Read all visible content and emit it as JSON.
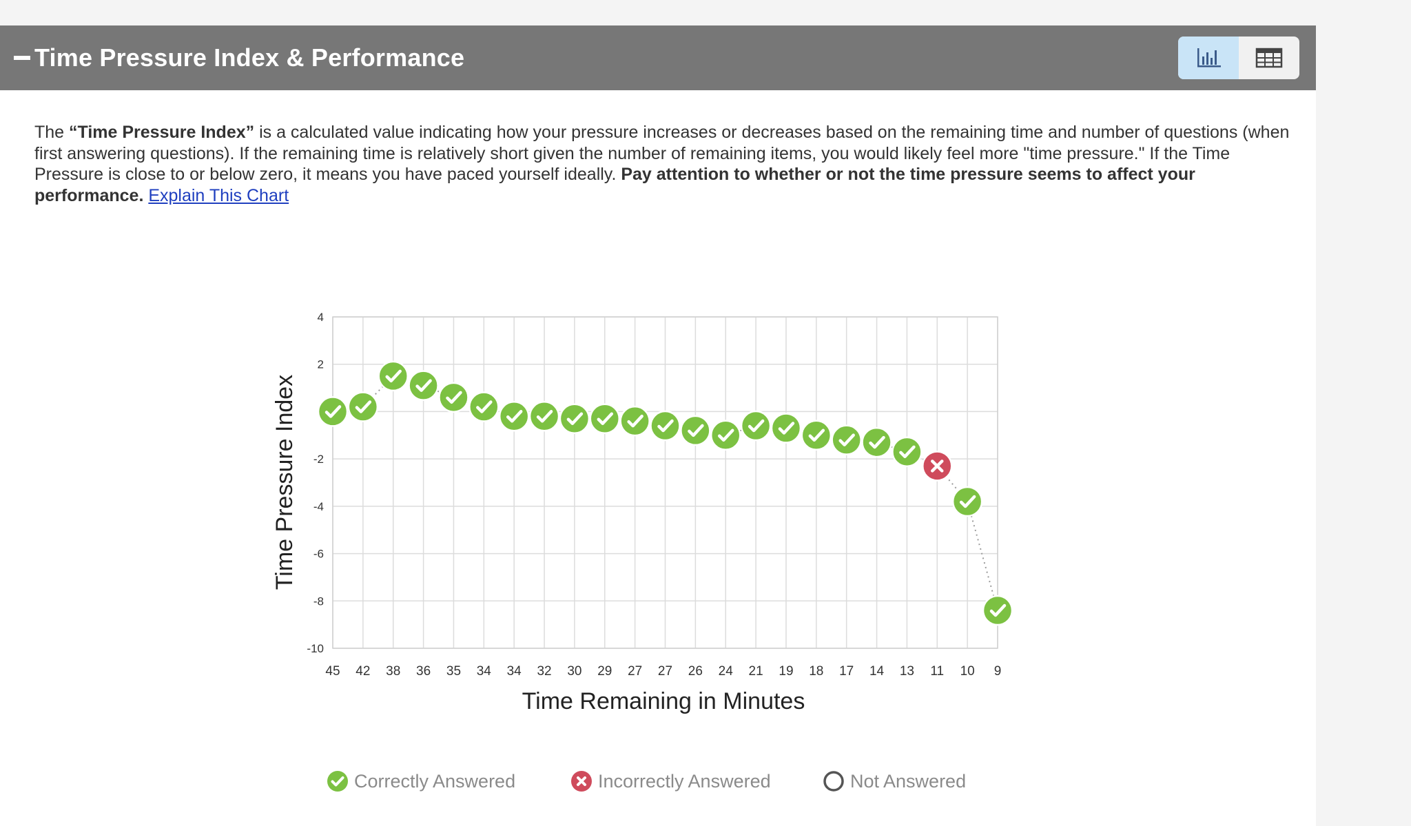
{
  "header": {
    "title": "Time Pressure Index & Performance",
    "chart_view_icon": "bar-chart-icon",
    "table_view_icon": "table-grid-icon"
  },
  "description": {
    "p1": "The ",
    "bold1": "“Time Pressure Index”",
    "p2": " is a calculated value indicating how your pressure increases or decreases based on the remaining time and number of questions (when first answering questions). If the remaining time is relatively short given the number of remaining items, you would likely feel more \"time pressure.\" If the Time Pressure is close to or below zero, it means you have paced yourself ideally. ",
    "bold2": "Pay attention to whether or not the time pressure seems to affect your performance.",
    "link": "Explain This Chart"
  },
  "legend": {
    "correct": "Correctly Answered",
    "incorrect": "Incorrectly Answered",
    "not_answered": "Not Answered"
  },
  "colors": {
    "correct": "#7cc142",
    "incorrect": "#cf4b5c",
    "header_bg": "#777777",
    "active_toggle": "#c9e4f7"
  },
  "chart_data": {
    "type": "scatter",
    "xlabel": "Time Remaining in Minutes",
    "ylabel": "Time Pressure Index",
    "ylim": [
      -10,
      4
    ],
    "yticks": [
      4,
      2,
      0,
      -2,
      -4,
      -6,
      -8,
      -10
    ],
    "grid": true,
    "legend_position": "bottom",
    "categories": [
      "45",
      "42",
      "38",
      "36",
      "35",
      "34",
      "34",
      "32",
      "30",
      "29",
      "27",
      "27",
      "26",
      "24",
      "21",
      "19",
      "18",
      "17",
      "14",
      "13",
      "11",
      "10",
      "9"
    ],
    "values": [
      0.0,
      0.2,
      1.5,
      1.1,
      0.6,
      0.2,
      -0.2,
      -0.2,
      -0.3,
      -0.3,
      -0.4,
      -0.6,
      -0.8,
      -1.0,
      -0.6,
      -0.7,
      -1.0,
      -1.2,
      -1.3,
      -1.7,
      -2.3,
      -3.8,
      -8.4
    ],
    "status": [
      "correct",
      "correct",
      "correct",
      "correct",
      "correct",
      "correct",
      "correct",
      "correct",
      "correct",
      "correct",
      "correct",
      "correct",
      "correct",
      "correct",
      "correct",
      "correct",
      "correct",
      "correct",
      "correct",
      "correct",
      "incorrect",
      "correct",
      "correct"
    ]
  }
}
